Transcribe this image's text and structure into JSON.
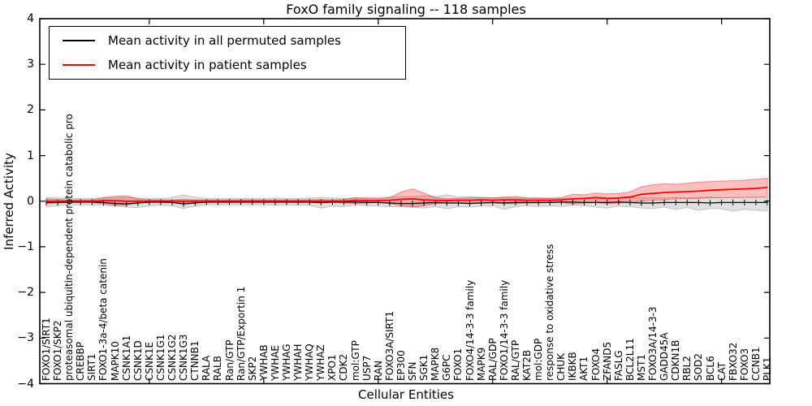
{
  "title": "FoxO family signaling -- 118 samples",
  "legend": [
    {
      "label": "Mean activity in all permuted samples",
      "color": "#000000"
    },
    {
      "label": "Mean activity in patient samples",
      "color": "#ff0000"
    }
  ],
  "chart_data": {
    "type": "line",
    "title": "FoxO family signaling -- 118 samples",
    "xlabel": "Cellular Entities",
    "ylabel": "Inferred Activity",
    "ylim": [
      -4,
      4
    ],
    "yticks": [
      4,
      3,
      2,
      1,
      0,
      -1,
      -2,
      -3,
      -4
    ],
    "ytick_labels": [
      "4",
      "3",
      "2",
      "1",
      "0",
      "−1",
      "−2",
      "−3",
      "−4"
    ],
    "xtick_indices": [
      9,
      19,
      29,
      39,
      49,
      59
    ],
    "grid": false,
    "legend_position": "upper left",
    "categories": [
      "FOXO1/SIRT1",
      "FOXO1/SKP2",
      "proteasomal ubiquitin-dependent protein catabolic pro",
      "CREBBP",
      "SIRT1",
      "FOXO1-3a-4/beta catenin",
      "MAPK10",
      "CSNK1A1",
      "CSNK1D",
      "CSNK1E",
      "CSNK1G1",
      "CSNK1G2",
      "CSNK1G3",
      "CTNNB1",
      "RALA",
      "RALB",
      "Ran/GTP",
      "Ran/GTP/Exportin 1",
      "SKP2",
      "YWHAB",
      "YWHAE",
      "YWHAG",
      "YWHAH",
      "YWHAQ",
      "YWHAZ",
      "XPO1",
      "CDK2",
      "mol:GTP",
      "USP7",
      "RAN",
      "FOXO3A/SIRT1",
      "EP300",
      "SFN",
      "SGK1",
      "MAPK8",
      "G6PC",
      "FOXO1",
      "FOXO4/14-3-3 family",
      "MAPK9",
      "RAL/GDP",
      "FOXO1/14-3-3 family",
      "RAL/GTP",
      "KAT2B",
      "mol:GDP",
      "response to oxidative stress",
      "CHUK",
      "IKBKB",
      "AKT1",
      "FOXO4",
      "ZFAND5",
      "FASLG",
      "BCL2L11",
      "MST1",
      "FOXO3A/14-3-3",
      "GADD45A",
      "CDKN1B",
      "RBL2",
      "SOD2",
      "BCL6",
      "CAT",
      "FBXO32",
      "FOXO3",
      "CCNB1",
      "PLK1"
    ],
    "series": [
      {
        "id": "permuted",
        "name": "Mean activity in all permuted samples",
        "color": "#000000",
        "width": 1.2,
        "band_color": "rgba(0,0,0,0.12)",
        "band_edge": "rgba(0,0,0,0.18)",
        "values": [
          -0.03,
          -0.03,
          -0.02,
          -0.02,
          -0.02,
          -0.03,
          -0.05,
          -0.06,
          -0.04,
          -0.02,
          -0.02,
          -0.03,
          -0.06,
          -0.04,
          -0.02,
          -0.02,
          -0.02,
          -0.02,
          -0.02,
          -0.02,
          -0.02,
          -0.02,
          -0.02,
          -0.02,
          -0.03,
          -0.02,
          -0.02,
          -0.02,
          -0.03,
          -0.03,
          -0.04,
          -0.05,
          -0.05,
          -0.04,
          -0.03,
          -0.04,
          -0.04,
          -0.05,
          -0.04,
          -0.03,
          -0.04,
          -0.03,
          -0.03,
          -0.03,
          -0.03,
          -0.02,
          -0.02,
          -0.03,
          -0.03,
          -0.03,
          -0.02,
          -0.03,
          -0.04,
          -0.04,
          -0.03,
          -0.03,
          -0.03,
          -0.03,
          -0.04,
          -0.03,
          -0.03,
          -0.03,
          -0.03,
          -0.03
        ],
        "band_upper": [
          0.08,
          0.07,
          0.06,
          0.06,
          0.06,
          0.07,
          0.08,
          0.08,
          0.07,
          0.06,
          0.06,
          0.08,
          0.14,
          0.09,
          0.06,
          0.06,
          0.06,
          0.06,
          0.06,
          0.06,
          0.07,
          0.06,
          0.06,
          0.07,
          0.08,
          0.07,
          0.06,
          0.07,
          0.08,
          0.08,
          0.09,
          0.1,
          0.1,
          0.12,
          0.1,
          0.14,
          0.09,
          0.1,
          0.08,
          0.07,
          0.08,
          0.07,
          0.07,
          0.08,
          0.07,
          0.06,
          0.06,
          0.07,
          0.07,
          0.08,
          0.06,
          0.07,
          0.08,
          0.08,
          0.07,
          0.08,
          0.07,
          0.08,
          0.09,
          0.07,
          0.08,
          0.07,
          0.08,
          0.08
        ],
        "band_lower": [
          -0.12,
          -0.1,
          -0.08,
          -0.08,
          -0.08,
          -0.09,
          -0.11,
          -0.13,
          -0.14,
          -0.1,
          -0.09,
          -0.1,
          -0.16,
          -0.11,
          -0.08,
          -0.08,
          -0.08,
          -0.08,
          -0.08,
          -0.08,
          -0.09,
          -0.08,
          -0.09,
          -0.09,
          -0.15,
          -0.11,
          -0.12,
          -0.09,
          -0.1,
          -0.11,
          -0.12,
          -0.12,
          -0.13,
          -0.15,
          -0.12,
          -0.17,
          -0.12,
          -0.13,
          -0.11,
          -0.1,
          -0.18,
          -0.12,
          -0.1,
          -0.12,
          -0.1,
          -0.12,
          -0.09,
          -0.1,
          -0.13,
          -0.15,
          -0.11,
          -0.12,
          -0.15,
          -0.16,
          -0.13,
          -0.18,
          -0.14,
          -0.2,
          -0.16,
          -0.17,
          -0.22,
          -0.18,
          -0.2,
          -0.22
        ]
      },
      {
        "id": "patient",
        "name": "Mean activity in patient samples",
        "color": "#ff0000",
        "width": 1.8,
        "band_color": "rgba(255,0,0,0.25)",
        "band_edge": "rgba(255,0,0,0.4)",
        "values": [
          0,
          0,
          0,
          0,
          0,
          0.01,
          0.01,
          0,
          0,
          0,
          0,
          0,
          0,
          0,
          0,
          0,
          0,
          0,
          0,
          0,
          0,
          0,
          0,
          0,
          0,
          0,
          0,
          0.02,
          0.01,
          0.01,
          0.02,
          0.04,
          0.05,
          0.03,
          0.02,
          0.01,
          0.02,
          0.02,
          0.03,
          0.02,
          0.03,
          0.03,
          0.02,
          0.02,
          0.02,
          0.03,
          0.05,
          0.06,
          0.08,
          0.06,
          0.07,
          0.09,
          0.15,
          0.17,
          0.19,
          0.2,
          0.21,
          0.22,
          0.24,
          0.25,
          0.26,
          0.27,
          0.28,
          0.3
        ],
        "band_upper": [
          0.05,
          0.04,
          0.03,
          0.03,
          0.03,
          0.08,
          0.11,
          0.12,
          0.05,
          0.03,
          0.03,
          0.03,
          0.04,
          0.03,
          0.03,
          0.03,
          0.03,
          0.03,
          0.03,
          0.03,
          0.03,
          0.03,
          0.03,
          0.03,
          0.04,
          0.03,
          0.04,
          0.08,
          0.06,
          0.05,
          0.08,
          0.2,
          0.27,
          0.18,
          0.08,
          0.05,
          0.06,
          0.07,
          0.08,
          0.07,
          0.09,
          0.1,
          0.07,
          0.06,
          0.06,
          0.08,
          0.15,
          0.14,
          0.18,
          0.16,
          0.17,
          0.2,
          0.32,
          0.36,
          0.38,
          0.37,
          0.39,
          0.42,
          0.43,
          0.44,
          0.45,
          0.46,
          0.48,
          0.5
        ],
        "band_lower": [
          -0.05,
          -0.04,
          -0.03,
          -0.03,
          -0.03,
          -0.06,
          -0.09,
          -0.08,
          -0.04,
          -0.03,
          -0.03,
          -0.03,
          -0.04,
          -0.03,
          -0.03,
          -0.03,
          -0.03,
          -0.03,
          -0.03,
          -0.03,
          -0.03,
          -0.03,
          -0.03,
          -0.03,
          -0.04,
          -0.03,
          -0.04,
          -0.05,
          -0.04,
          -0.03,
          -0.05,
          -0.1,
          -0.13,
          -0.1,
          -0.05,
          -0.04,
          -0.04,
          -0.04,
          -0.04,
          -0.04,
          -0.05,
          -0.05,
          -0.04,
          -0.04,
          -0.03,
          -0.03,
          -0.06,
          -0.04,
          -0.03,
          -0.05,
          -0.04,
          -0.03,
          0.0,
          0.02,
          0.03,
          0.05,
          0.05,
          0.06,
          0.07,
          0.08,
          0.08,
          0.09,
          0.09,
          0.1
        ]
      }
    ]
  }
}
